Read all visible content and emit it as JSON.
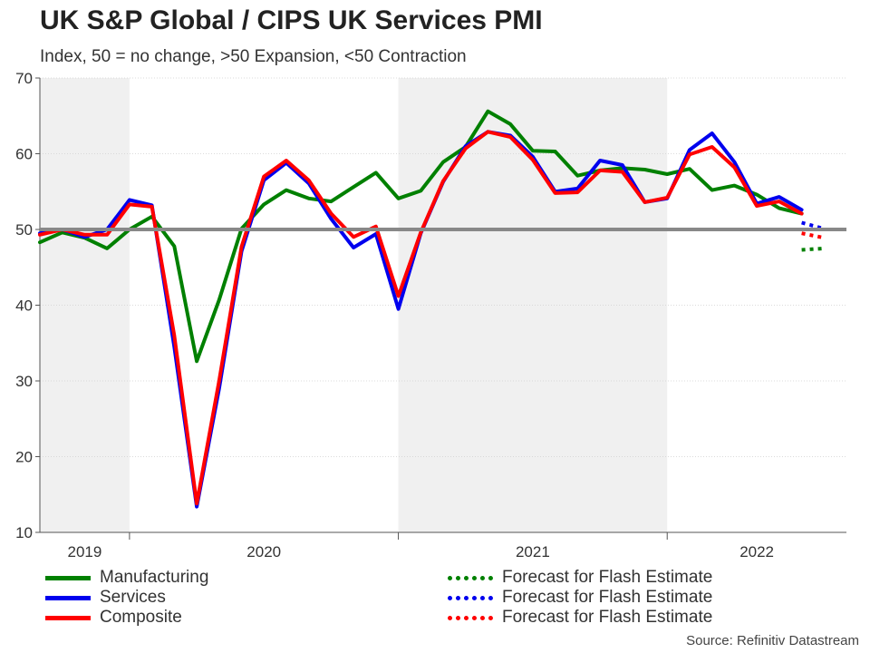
{
  "header": {
    "title": "UK S&P Global / CIPS UK Services PMI",
    "subtitle": "Index, 50 = no change, >50 Expansion, <50 Contraction"
  },
  "source": "Source: Refinitiv Datastream",
  "colors": {
    "manufacturing": "#008000",
    "services": "#0000ee",
    "composite": "#ff0000",
    "reference_line": "#888888",
    "shade": "#f0f0f0",
    "grid": "#d0d0d0"
  },
  "chart_data": {
    "type": "line",
    "title": "UK S&P Global / CIPS UK Services PMI",
    "subtitle": "Index, 50 = no change, >50 Expansion, <50 Contraction",
    "ylim": [
      10,
      70
    ],
    "yticks": [
      10,
      20,
      30,
      40,
      50,
      60,
      70
    ],
    "reference_line": 50,
    "x_start": "2019-09",
    "x_end": "2022-08",
    "years": [
      {
        "label": "2019",
        "start": "2019-09",
        "end": "2019-12",
        "shaded": true
      },
      {
        "label": "2020",
        "start": "2020-01",
        "end": "2020-12",
        "shaded": false
      },
      {
        "label": "2021",
        "start": "2021-01",
        "end": "2021-12",
        "shaded": true
      },
      {
        "label": "2022",
        "start": "2022-01",
        "end": "2022-08",
        "shaded": false
      }
    ],
    "months": [
      "2019-09",
      "2019-10",
      "2019-11",
      "2019-12",
      "2020-01",
      "2020-02",
      "2020-03",
      "2020-04",
      "2020-05",
      "2020-06",
      "2020-07",
      "2020-08",
      "2020-09",
      "2020-10",
      "2020-11",
      "2020-12",
      "2021-01",
      "2021-02",
      "2021-03",
      "2021-04",
      "2021-05",
      "2021-06",
      "2021-07",
      "2021-08",
      "2021-09",
      "2021-10",
      "2021-11",
      "2021-12",
      "2022-01",
      "2022-02",
      "2022-03",
      "2022-04",
      "2022-05",
      "2022-06",
      "2022-07"
    ],
    "series": [
      {
        "name": "Manufacturing",
        "values": [
          48.3,
          49.6,
          48.9,
          47.5,
          50.0,
          51.7,
          47.8,
          32.6,
          40.7,
          50.1,
          53.3,
          55.2,
          54.1,
          53.7,
          55.6,
          57.5,
          54.1,
          55.1,
          58.9,
          60.9,
          65.6,
          63.9,
          60.4,
          60.3,
          57.1,
          57.8,
          58.1,
          57.9,
          57.3,
          58.0,
          55.2,
          55.8,
          54.6,
          52.8,
          52.1
        ]
      },
      {
        "name": "Services",
        "values": [
          49.5,
          50.0,
          49.0,
          50.0,
          53.9,
          53.2,
          34.5,
          13.4,
          29.0,
          47.1,
          56.5,
          58.8,
          56.1,
          51.4,
          47.6,
          49.4,
          39.5,
          49.5,
          56.3,
          61.0,
          62.9,
          62.4,
          59.6,
          55.0,
          55.4,
          59.1,
          58.5,
          53.6,
          54.1,
          60.5,
          62.7,
          58.9,
          53.4,
          54.3,
          52.6
        ]
      },
      {
        "name": "Composite",
        "values": [
          49.3,
          50.0,
          49.3,
          49.3,
          53.3,
          53.0,
          36.0,
          13.8,
          30.0,
          47.7,
          57.0,
          59.1,
          56.5,
          52.1,
          49.0,
          50.4,
          41.2,
          49.6,
          56.4,
          60.7,
          62.9,
          62.2,
          59.2,
          54.8,
          54.9,
          57.8,
          57.6,
          53.6,
          54.2,
          59.9,
          60.9,
          58.2,
          53.1,
          53.7,
          52.1
        ]
      }
    ],
    "forecast_series": [
      {
        "name": "Forecast for Flash Estimate",
        "base": "Manufacturing",
        "x": [
          "2022-07",
          "2022-08"
        ],
        "values": [
          47.3,
          47.5
        ]
      },
      {
        "name": "Forecast for Flash Estimate",
        "base": "Services",
        "x": [
          "2022-07",
          "2022-08"
        ],
        "values": [
          50.9,
          50.1
        ]
      },
      {
        "name": "Forecast for Flash Estimate",
        "base": "Composite",
        "x": [
          "2022-07",
          "2022-08"
        ],
        "values": [
          49.5,
          48.9
        ]
      }
    ]
  },
  "legend": {
    "left": [
      "Manufacturing",
      "Services",
      "Composite"
    ],
    "right": [
      "Forecast for Flash Estimate",
      "Forecast for Flash Estimate",
      "Forecast for Flash Estimate"
    ]
  }
}
